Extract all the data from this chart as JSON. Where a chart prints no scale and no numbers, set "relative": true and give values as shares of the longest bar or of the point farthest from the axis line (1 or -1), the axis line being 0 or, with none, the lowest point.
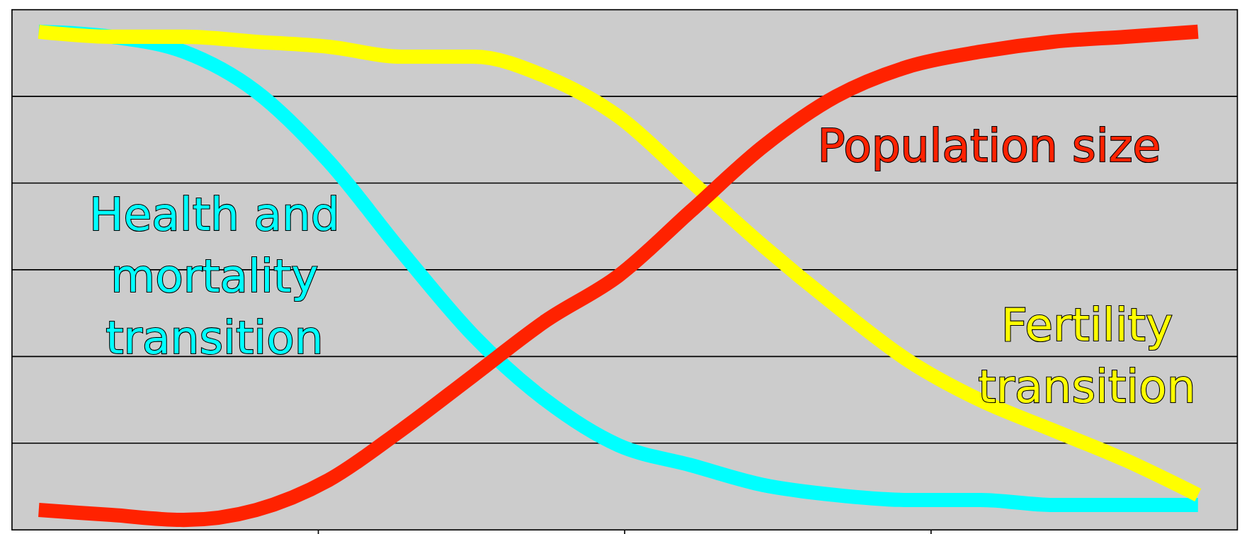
{
  "chart_data": {
    "type": "line",
    "relative": true,
    "grid": "y",
    "categories": [
      null,
      null,
      null,
      null,
      null,
      null,
      null,
      null,
      null,
      null,
      null,
      null,
      null,
      null,
      null,
      null,
      null
    ],
    "series": [
      {
        "name": "Health and mortality transition",
        "color": "#00ffff",
        "values": [
          1.0,
          0.99,
          0.96,
          0.88,
          0.74,
          0.56,
          0.39,
          0.26,
          0.17,
          0.13,
          0.09,
          0.07,
          0.06,
          0.06,
          0.05,
          0.05,
          0.05
        ]
      },
      {
        "name": "Fertility transition",
        "color": "#ffff00",
        "values": [
          1.0,
          0.99,
          0.99,
          0.98,
          0.97,
          0.95,
          0.95,
          0.91,
          0.83,
          0.7,
          0.57,
          0.45,
          0.34,
          0.26,
          0.2,
          0.14,
          0.07
        ]
      },
      {
        "name": "Population size",
        "color": "#ff2200",
        "values": [
          0.04,
          0.03,
          0.02,
          0.04,
          0.1,
          0.2,
          0.31,
          0.42,
          0.51,
          0.64,
          0.77,
          0.87,
          0.93,
          0.96,
          0.98,
          0.99,
          1.0
        ]
      }
    ]
  }
}
